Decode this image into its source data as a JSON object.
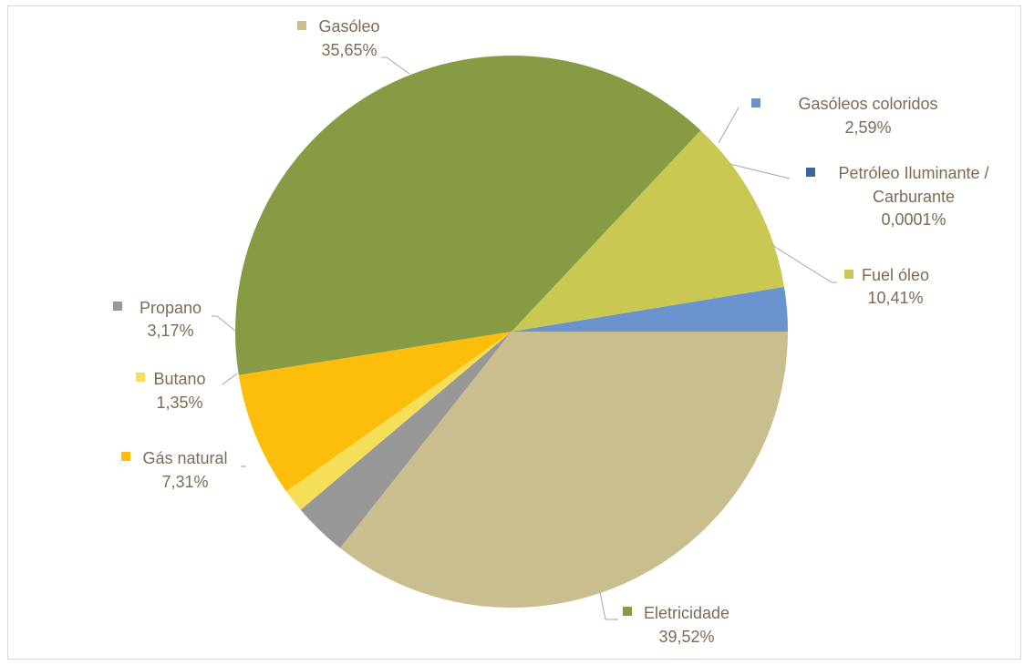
{
  "chart_data": {
    "type": "pie",
    "title": "",
    "start_angle_deg": 0,
    "direction": "counterclockwise",
    "slices": [
      {
        "name": "Gasóleos coloridos",
        "value": 2.59,
        "value_label": "2,59%",
        "color": "#6a93cd"
      },
      {
        "name": "Petróleo Iluminante / Carburante",
        "value": 0.0001,
        "value_label": "0,0001%",
        "color": "#3b64a0"
      },
      {
        "name": "Fuel óleo",
        "value": 10.41,
        "value_label": "10,41%",
        "color": "#c8c853"
      },
      {
        "name": "Eletricidade",
        "value": 39.52,
        "value_label": "39,52%",
        "color": "#879b45"
      },
      {
        "name": "Gás natural",
        "value": 7.31,
        "value_label": "7,31%",
        "color": "#fcbd0b"
      },
      {
        "name": "Butano",
        "value": 1.35,
        "value_label": "1,35%",
        "color": "#f5de58"
      },
      {
        "name": "Propano",
        "value": 3.17,
        "value_label": "3,17%",
        "color": "#979797"
      },
      {
        "name": "Gasóleo",
        "value": 35.65,
        "value_label": "35,65%",
        "color": "#c9be8d"
      }
    ],
    "label_text_color": "#7f6a53",
    "leader_line_color": "#a6a6a6"
  }
}
